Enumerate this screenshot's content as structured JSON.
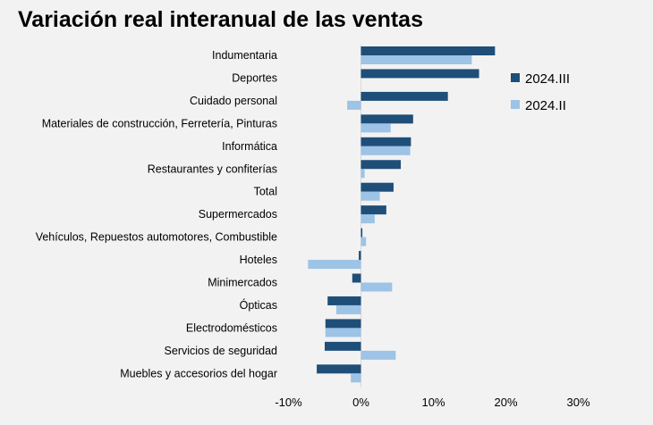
{
  "chart_data": {
    "type": "bar",
    "orientation": "horizontal",
    "title": "Variación real interanual de las ventas",
    "categories": [
      "Indumentaria",
      "Deportes",
      "Cuidado personal",
      "Materiales de construcción, Ferretería, Pinturas",
      "Informática",
      "Restaurantes y confiterías",
      "Total",
      "Supermercados",
      "Vehículos, Repuestos automotores, Combustible",
      "Hoteles",
      "Minimercados",
      "Ópticas",
      "Electrodomésticos",
      "Servicios de seguridad",
      "Muebles y accesorios del hogar"
    ],
    "series": [
      {
        "name": "2024.III",
        "color": "#1f4e79",
        "values": [
          18.5,
          16.3,
          12.0,
          7.2,
          6.9,
          5.5,
          4.5,
          3.5,
          0.2,
          -0.3,
          -1.2,
          -4.6,
          -4.9,
          -5.0,
          -6.1
        ]
      },
      {
        "name": "2024.II",
        "color": "#9dc3e6",
        "values": [
          15.3,
          0,
          -1.9,
          4.1,
          6.8,
          0.5,
          2.6,
          1.9,
          0.7,
          -7.3,
          4.3,
          -3.4,
          -4.9,
          4.8,
          -1.4
        ]
      }
    ],
    "xlim": [
      -10,
      30
    ],
    "xticks": [
      -10,
      0,
      10,
      20,
      30
    ],
    "xtick_labels": [
      "-10%",
      "0%",
      "10%",
      "20%",
      "30%"
    ],
    "unit": "%",
    "grid": false,
    "legend_position": "right"
  }
}
